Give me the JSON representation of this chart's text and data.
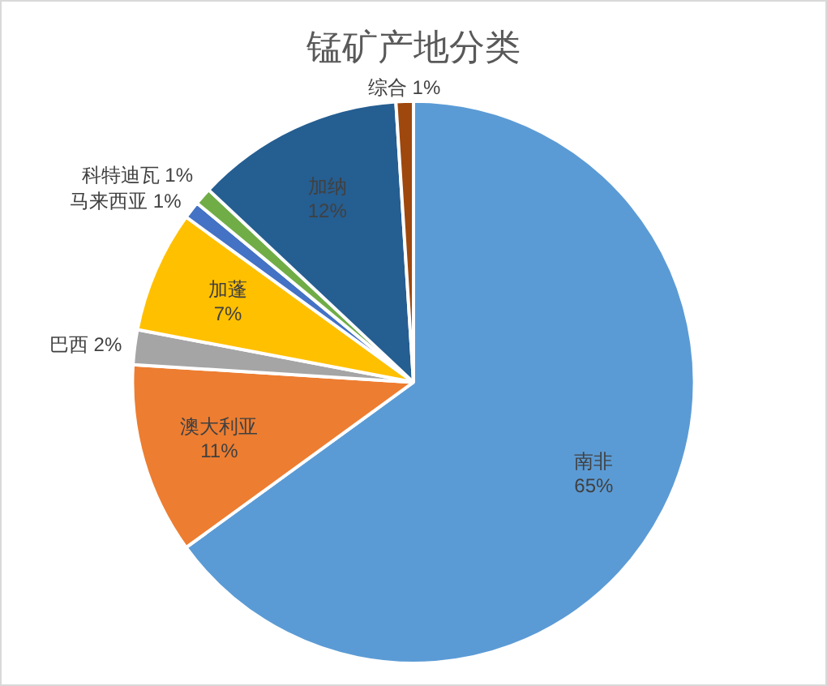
{
  "chart_data": {
    "type": "pie",
    "title": "锰矿产地分类",
    "categories": [
      "南非",
      "澳大利亚",
      "巴西",
      "加蓬",
      "马来西亚",
      "科特迪瓦",
      "加纳",
      "综合"
    ],
    "values": [
      65,
      11,
      2,
      7,
      1,
      1,
      12,
      1
    ],
    "value_labels": [
      "65%",
      "11%",
      "2%",
      "7%",
      "1%",
      "1%",
      "12%",
      "1%"
    ],
    "colors": [
      "#5b9bd5",
      "#ed7d31",
      "#a5a5a5",
      "#ffc000",
      "#4472c4",
      "#70ad47",
      "#255e91",
      "#9e480e"
    ],
    "legend": false
  }
}
